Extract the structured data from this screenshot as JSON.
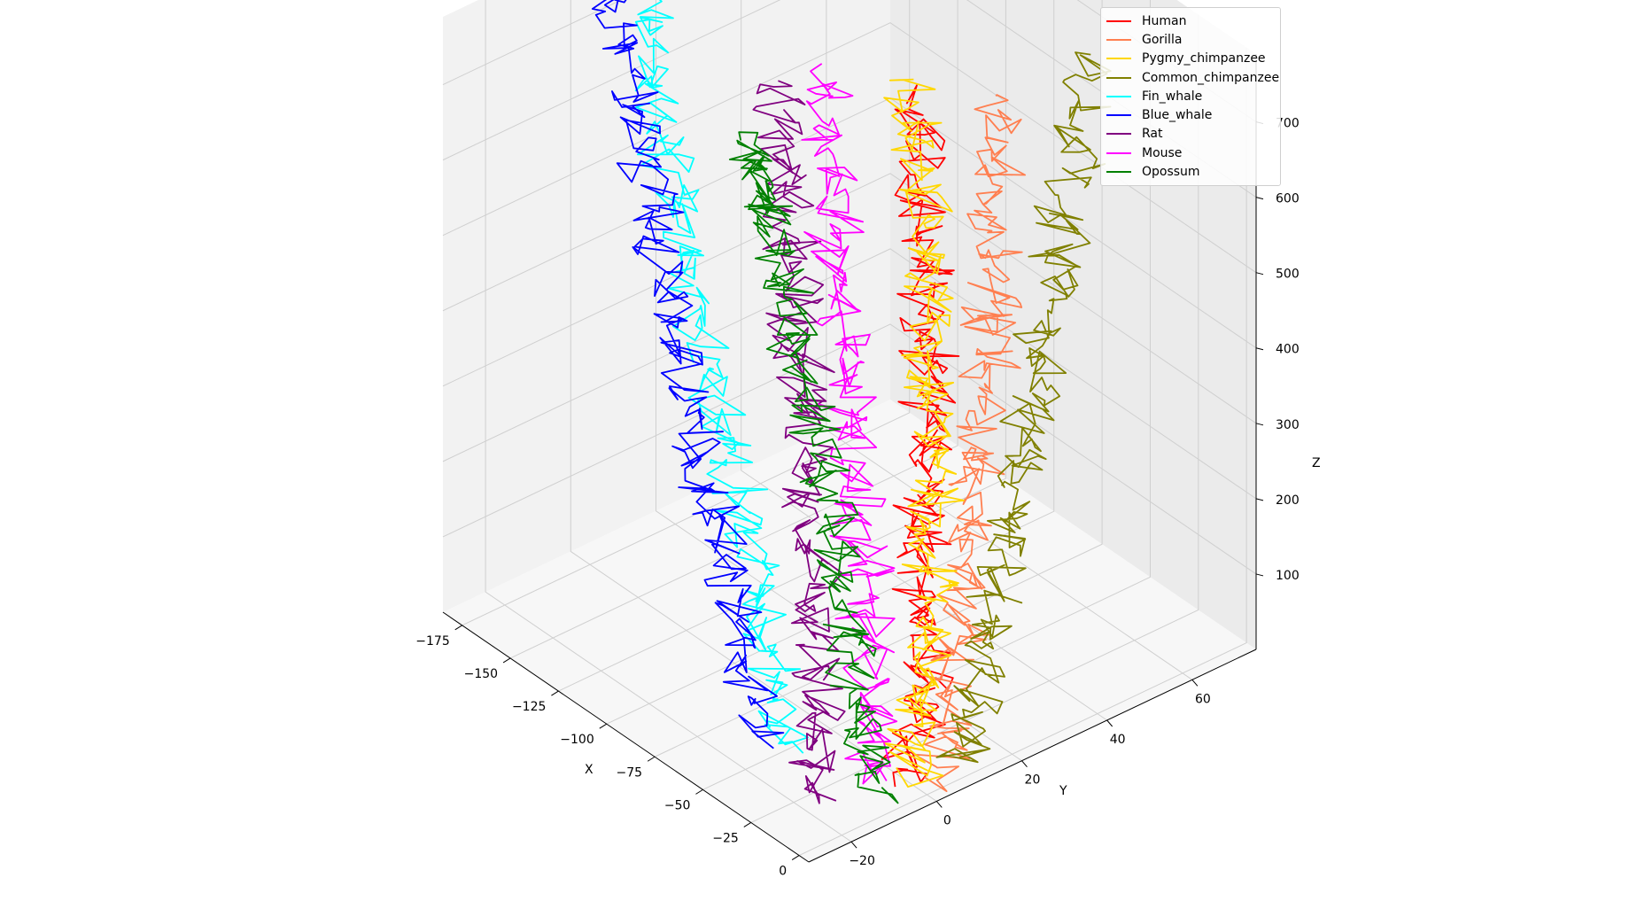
{
  "chart_data": {
    "type": "line",
    "projection": "3d",
    "xlabel": "X",
    "ylabel": "Y",
    "zlabel": "Z",
    "xlim": [
      -185,
      5
    ],
    "ylim": [
      -30,
      75
    ],
    "zlim": [
      0,
      790
    ],
    "x_ticks": [
      "−175",
      "−150",
      "−125",
      "−100",
      "−75",
      "−50",
      "−25",
      "0"
    ],
    "x_tick_values": [
      -175,
      -150,
      -125,
      -100,
      -75,
      -50,
      -25,
      0
    ],
    "y_ticks": [
      "−20",
      "0",
      "20",
      "40",
      "60"
    ],
    "y_tick_values": [
      -20,
      0,
      20,
      40,
      60
    ],
    "z_ticks": [
      "100",
      "200",
      "300",
      "400",
      "500",
      "600",
      "700"
    ],
    "z_tick_values": [
      100,
      200,
      300,
      400,
      500,
      600,
      700
    ],
    "grid": true,
    "legend_position": "top-right",
    "series": [
      {
        "name": "Human",
        "color": "#ff0000",
        "points": [
          [
            -10,
            0,
            0
          ],
          [
            -15,
            6,
            150
          ],
          [
            -25,
            10,
            300
          ],
          [
            -30,
            14,
            450
          ],
          [
            -40,
            18,
            600
          ],
          [
            -55,
            22,
            780
          ]
        ]
      },
      {
        "name": "Gorilla",
        "color": "#ff7f50",
        "points": [
          [
            -5,
            5,
            0
          ],
          [
            -10,
            12,
            150
          ],
          [
            -15,
            18,
            300
          ],
          [
            -20,
            24,
            450
          ],
          [
            -28,
            28,
            600
          ],
          [
            -35,
            32,
            780
          ]
        ]
      },
      {
        "name": "Pygmy_chimpanzee",
        "color": "#ffd700",
        "points": [
          [
            -12,
            2,
            0
          ],
          [
            -18,
            8,
            150
          ],
          [
            -28,
            14,
            300
          ],
          [
            -38,
            18,
            450
          ],
          [
            -48,
            22,
            600
          ],
          [
            -60,
            24,
            780
          ]
        ]
      },
      {
        "name": "Common_chimpanzee",
        "color": "#808000",
        "points": [
          [
            -5,
            10,
            0
          ],
          [
            -8,
            18,
            150
          ],
          [
            -12,
            26,
            300
          ],
          [
            -16,
            34,
            450
          ],
          [
            -22,
            42,
            600
          ],
          [
            -30,
            52,
            790
          ]
        ]
      },
      {
        "name": "Fin_whale",
        "color": "#00ffff",
        "points": [
          [
            -50,
            -10,
            0
          ],
          [
            -75,
            -6,
            150
          ],
          [
            -100,
            -2,
            300
          ],
          [
            -125,
            2,
            450
          ],
          [
            -150,
            6,
            600
          ],
          [
            -175,
            10,
            760
          ]
        ]
      },
      {
        "name": "Blue_whale",
        "color": "#0000ff",
        "points": [
          [
            -60,
            -12,
            0
          ],
          [
            -85,
            -8,
            150
          ],
          [
            -110,
            -4,
            300
          ],
          [
            -135,
            0,
            450
          ],
          [
            -160,
            4,
            600
          ],
          [
            -180,
            8,
            760
          ]
        ]
      },
      {
        "name": "Rat",
        "color": "#800080",
        "points": [
          [
            -20,
            -15,
            0
          ],
          [
            -35,
            -10,
            150
          ],
          [
            -50,
            -5,
            300
          ],
          [
            -65,
            0,
            450
          ],
          [
            -80,
            4,
            600
          ],
          [
            -95,
            8,
            760
          ]
        ]
      },
      {
        "name": "Mouse",
        "color": "#ff00ff",
        "points": [
          [
            -15,
            -5,
            0
          ],
          [
            -30,
            0,
            150
          ],
          [
            -45,
            4,
            300
          ],
          [
            -60,
            8,
            450
          ],
          [
            -75,
            12,
            600
          ],
          [
            -90,
            16,
            770
          ]
        ]
      },
      {
        "name": "Opossum",
        "color": "#008000",
        "points": [
          [
            -10,
            -8,
            0
          ],
          [
            -30,
            -4,
            150
          ],
          [
            -50,
            0,
            300
          ],
          [
            -70,
            2,
            450
          ],
          [
            -90,
            4,
            600
          ],
          [
            -110,
            6,
            660
          ]
        ]
      }
    ]
  }
}
